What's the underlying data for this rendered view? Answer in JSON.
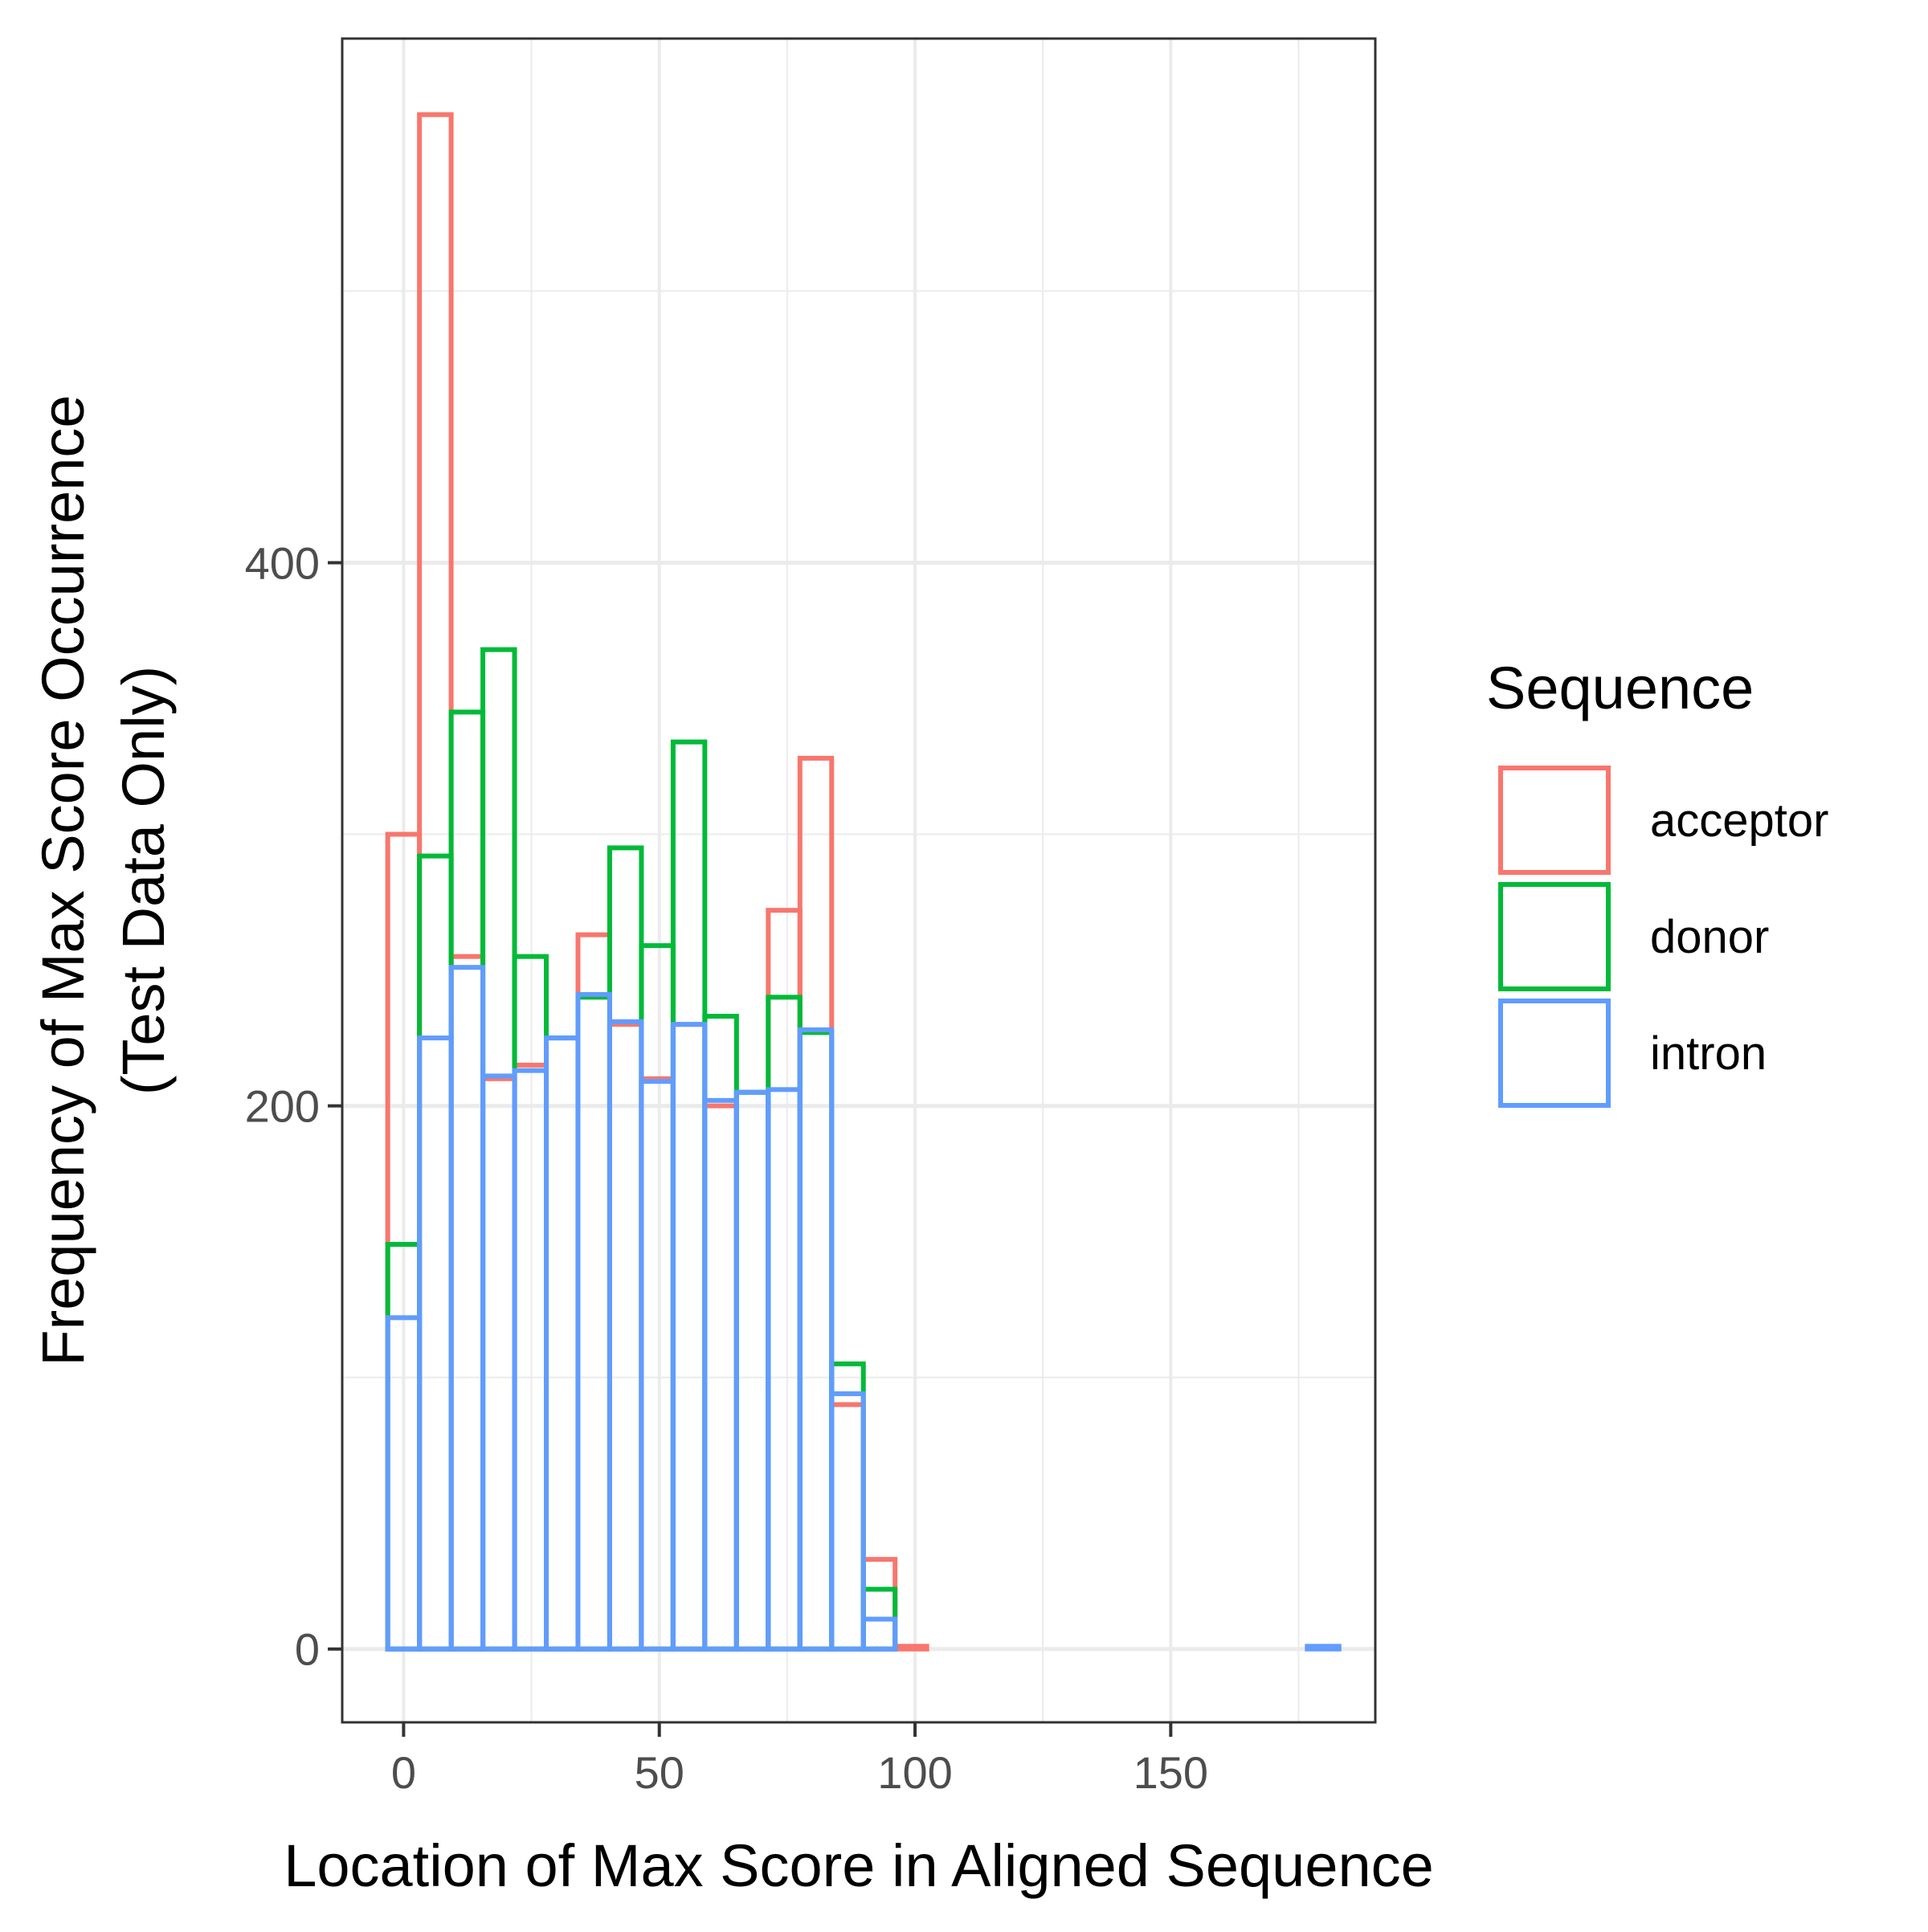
{
  "chart_data": {
    "type": "histogram",
    "title": "",
    "xlabel": "Location of Max Score in Aligned Sequence",
    "ylabel_lines": [
      "Frequency of Max Score Occurrence",
      "(Test Data Only)"
    ],
    "xlim": [
      -12,
      190
    ],
    "ylim": [
      -27,
      593
    ],
    "x_ticks": [
      0,
      50,
      100,
      150
    ],
    "y_ticks": [
      0,
      200,
      400
    ],
    "grid": true,
    "legend_position": "right",
    "legend_title": "Sequence",
    "bin_width": 6.2,
    "bin_starts": [
      -3.1,
      3.1,
      9.3,
      15.5,
      21.7,
      27.9,
      34.1,
      40.3,
      46.5,
      52.7,
      58.9,
      65.1,
      71.3,
      77.5,
      83.7,
      89.9,
      96.1,
      102.3,
      108.5,
      114.7,
      120.9,
      127.1,
      133.3,
      139.5,
      145.7,
      151.9,
      158.1,
      164.3,
      170.5,
      176.7
    ],
    "series": [
      {
        "name": "acceptor",
        "color": "#F8766D",
        "values": [
          300,
          565,
          255,
          210,
          215,
          225,
          263,
          230,
          210,
          230,
          200,
          205,
          272,
          328,
          90,
          33,
          1,
          0,
          0,
          0,
          0,
          0,
          0,
          0,
          0,
          0,
          0,
          0,
          0,
          0
        ]
      },
      {
        "name": "donor",
        "color": "#00BA38",
        "values": [
          149,
          292,
          345,
          368,
          255,
          225,
          240,
          295,
          259,
          334,
          233,
          205,
          240,
          227,
          105,
          22,
          0,
          0,
          0,
          0,
          0,
          0,
          0,
          0,
          0,
          0,
          0,
          0,
          0,
          0
        ]
      },
      {
        "name": "intron",
        "color": "#619CFF",
        "values": [
          122,
          225,
          251,
          211,
          213,
          225,
          241,
          231,
          209,
          230,
          202,
          205,
          206,
          228,
          94,
          11,
          0,
          0,
          0,
          0,
          0,
          0,
          0,
          0,
          0,
          0,
          0,
          0,
          0,
          1
        ]
      }
    ]
  }
}
